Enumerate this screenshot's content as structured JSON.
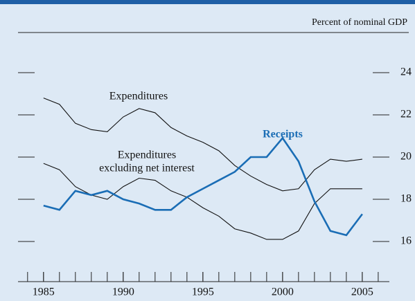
{
  "chart_data": {
    "type": "line",
    "subtitle": "Percent of nominal GDP",
    "x": [
      1985,
      1986,
      1987,
      1988,
      1989,
      1990,
      1991,
      1992,
      1993,
      1994,
      1995,
      1996,
      1997,
      1998,
      1999,
      2000,
      2001,
      2002,
      2003,
      2004,
      2005
    ],
    "xlim": [
      1983.4,
      2006.7
    ],
    "xticks": [
      1985,
      1990,
      1995,
      2000,
      2005
    ],
    "x_minor_ticks": [
      1984,
      1985,
      1986,
      1987,
      1988,
      1989,
      1990,
      1991,
      1992,
      1993,
      1994,
      1995,
      1996,
      1997,
      1998,
      1999,
      2000,
      2001,
      2002,
      2003,
      2004,
      2005,
      2006
    ],
    "ylim": [
      14.1,
      25.9
    ],
    "yticks": [
      16,
      18,
      20,
      22,
      24
    ],
    "series": [
      {
        "name": [
          "Expenditures"
        ],
        "color": "#111111",
        "values": [
          22.8,
          22.5,
          21.6,
          21.3,
          21.2,
          21.9,
          22.3,
          22.1,
          21.4,
          21.0,
          20.7,
          20.3,
          19.6,
          19.1,
          18.7,
          18.4,
          18.5,
          19.4,
          19.9,
          19.8,
          19.9
        ]
      },
      {
        "name": [
          "Expenditures",
          "excluding net interest"
        ],
        "color": "#111111",
        "values": [
          19.7,
          19.4,
          18.6,
          18.2,
          18.0,
          18.6,
          19.0,
          18.9,
          18.4,
          18.1,
          17.6,
          17.2,
          16.6,
          16.4,
          16.1,
          16.1,
          16.5,
          17.8,
          18.5,
          18.5,
          18.5
        ]
      },
      {
        "name": [
          "Receipts"
        ],
        "color": "#1a6db5",
        "values": [
          17.7,
          17.5,
          18.4,
          18.2,
          18.4,
          18.0,
          17.8,
          17.5,
          17.5,
          18.1,
          18.5,
          18.9,
          19.3,
          20.0,
          20.0,
          20.9,
          19.8,
          17.9,
          16.5,
          16.3,
          17.3
        ]
      }
    ]
  }
}
